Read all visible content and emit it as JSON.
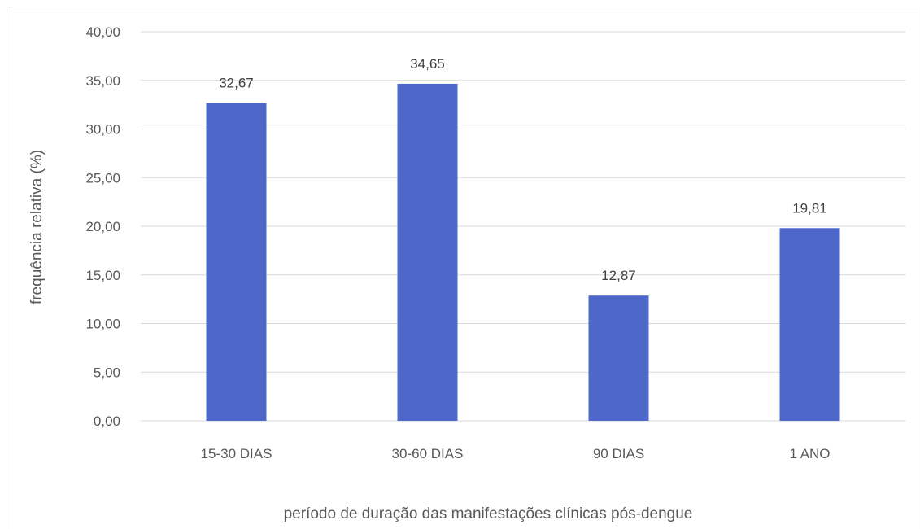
{
  "chart_data": {
    "type": "bar",
    "categories": [
      "15-30 DIAS",
      "30-60 DIAS",
      "90 DIAS",
      "1 ANO"
    ],
    "values": [
      32.67,
      34.65,
      12.87,
      19.81
    ],
    "value_labels": [
      "32,67",
      "34,65",
      "12,87",
      "19,81"
    ],
    "title": "",
    "xlabel": "período de duração das manifestações clínicas pós-dengue",
    "ylabel": "frequência relativa (%)",
    "ylim": [
      0,
      40
    ],
    "y_ticks": [
      "0,00",
      "5,00",
      "10,00",
      "15,00",
      "20,00",
      "25,00",
      "30,00",
      "35,00",
      "40,00"
    ],
    "bar_color": "#4e68c9",
    "grid": true,
    "legend": "none"
  }
}
